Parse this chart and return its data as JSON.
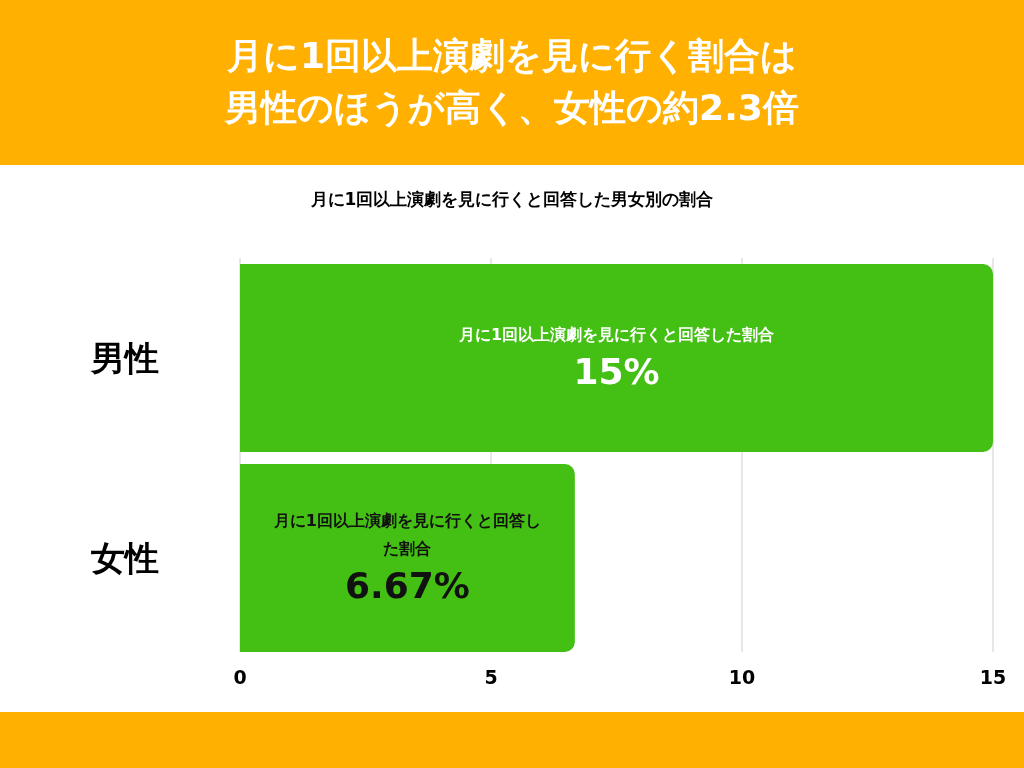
{
  "chart_data": {
    "type": "bar",
    "orientation": "horizontal",
    "title": "月に1回以上演劇を見に行く割合は男性のほうが高く、女性の約2.3倍",
    "subtitle": "月に1回以上演劇を見に行くと回答した男女別の割合",
    "categories": [
      "男性",
      "女性"
    ],
    "values": [
      15,
      6.67
    ],
    "value_labels": [
      "15%",
      "6.67%"
    ],
    "color": "#44bf13",
    "xlim": [
      0,
      15
    ],
    "xticks": [
      0,
      5,
      10,
      15
    ],
    "grid": "x",
    "annotations": [
      "月に1回以上演劇を見に行くと回答した割合",
      "月に1回以上演劇を見に行くと回答した割合"
    ]
  }
}
